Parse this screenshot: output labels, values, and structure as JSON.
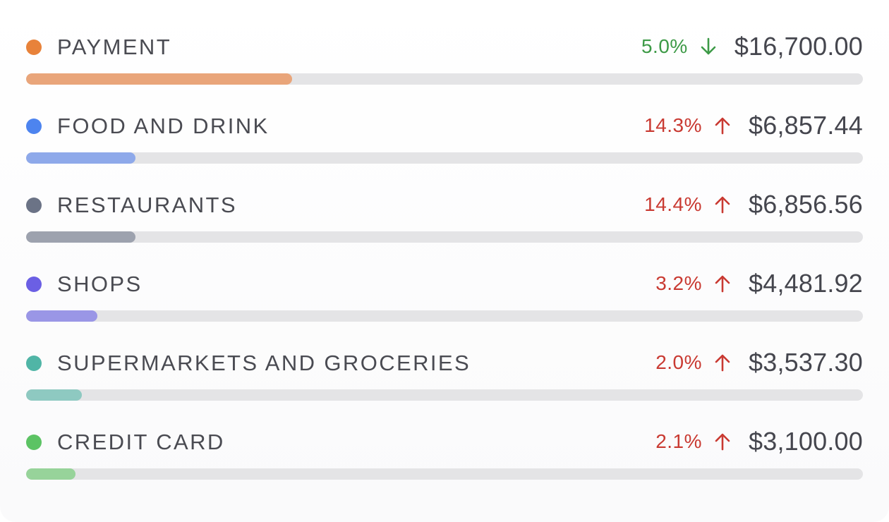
{
  "categories": [
    {
      "label": "PAYMENT",
      "percent": "5.0%",
      "trend": "down",
      "amount": "$16,700.00",
      "share": 0.318,
      "dot_color": "#e8823a",
      "bar_color": "#e9a57a",
      "trend_color": "#3d9a47"
    },
    {
      "label": "FOOD AND DRINK",
      "percent": "14.3%",
      "trend": "up",
      "amount": "$6,857.44",
      "share": 0.131,
      "dot_color": "#4d84ef",
      "bar_color": "#8ea9ea",
      "trend_color": "#c93a32"
    },
    {
      "label": "RESTAURANTS",
      "percent": "14.4%",
      "trend": "up",
      "amount": "$6,856.56",
      "share": 0.131,
      "dot_color": "#6b7386",
      "bar_color": "#9da2ae",
      "trend_color": "#c93a32"
    },
    {
      "label": "SHOPS",
      "percent": "3.2%",
      "trend": "up",
      "amount": "$4,481.92",
      "share": 0.085,
      "dot_color": "#6b5fe4",
      "bar_color": "#9a96e6",
      "trend_color": "#c93a32"
    },
    {
      "label": "SUPERMARKETS AND GROCERIES",
      "percent": "2.0%",
      "trend": "up",
      "amount": "$3,537.30",
      "share": 0.067,
      "dot_color": "#50b5a6",
      "bar_color": "#8ec9c1",
      "trend_color": "#c93a32"
    },
    {
      "label": "CREDIT CARD",
      "percent": "2.1%",
      "trend": "up",
      "amount": "$3,100.00",
      "share": 0.059,
      "dot_color": "#5cc364",
      "bar_color": "#97d39a",
      "trend_color": "#c93a32"
    }
  ]
}
